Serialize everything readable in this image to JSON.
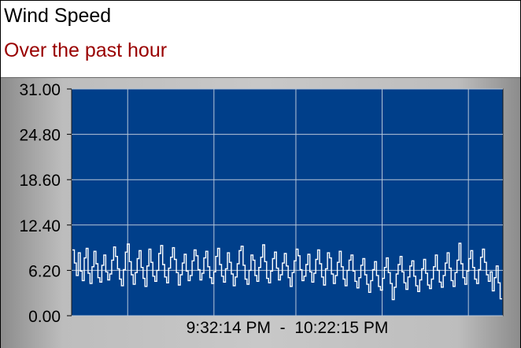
{
  "header": {
    "title": "Wind Speed",
    "subtitle": "Over the past hour"
  },
  "colors": {
    "plot_background": "#003f8a",
    "series": "#ffffff",
    "grid": "#b9c6d8",
    "subtitle": "#990000"
  },
  "chart_data": {
    "type": "line",
    "title": "Wind Speed",
    "subtitle": "Over the past hour",
    "xlabel": "",
    "ylabel": "",
    "x_range_label": "9:32:14 PM  -  10:22:15 PM",
    "x_start": "9:32:14 PM",
    "x_end": "10:22:15 PM",
    "ylim": [
      0,
      31
    ],
    "y_ticks": [
      "31.00",
      "24.80",
      "18.60",
      "12.40",
      "6.20",
      "0.00"
    ],
    "grid": true,
    "legend": "none",
    "series": [
      {
        "values": [
          9.0,
          7.2,
          5.5,
          8.6,
          6.1,
          4.8,
          7.9,
          9.2,
          5.8,
          4.4,
          6.7,
          8.8,
          7.1,
          5.2,
          4.6,
          6.9,
          8.3,
          6.0,
          4.9,
          5.7,
          7.6,
          9.4,
          8.1,
          6.4,
          5.0,
          4.1,
          6.3,
          8.7,
          9.8,
          7.4,
          5.6,
          4.3,
          5.9,
          7.8,
          8.9,
          6.6,
          5.1,
          4.0,
          6.8,
          9.1,
          7.3,
          5.4,
          4.7,
          6.2,
          8.5,
          9.6,
          7.0,
          5.3,
          4.5,
          6.5,
          8.0,
          9.3,
          7.7,
          5.9,
          4.2,
          5.6,
          7.2,
          8.4,
          6.1,
          4.8,
          5.5,
          7.5,
          9.0,
          8.2,
          6.3,
          4.9,
          5.8,
          7.9,
          8.8,
          6.7,
          5.2,
          4.4,
          6.0,
          8.1,
          9.2,
          7.0,
          5.4,
          4.6,
          6.4,
          8.6,
          7.3,
          5.7,
          4.1,
          5.3,
          7.1,
          8.9,
          9.5,
          6.9,
          5.0,
          4.3,
          6.2,
          8.3,
          7.6,
          5.5,
          4.7,
          6.6,
          8.0,
          9.7,
          7.4,
          5.1,
          4.5,
          6.1,
          7.8,
          8.7,
          6.5,
          4.9,
          5.6,
          7.2,
          8.5,
          6.8,
          5.2,
          4.0,
          5.9,
          7.5,
          9.1,
          8.2,
          6.3,
          4.8,
          5.4,
          7.0,
          8.4,
          6.0,
          4.6,
          5.8,
          7.7,
          9.0,
          7.1,
          5.3,
          4.2,
          6.4,
          8.6,
          7.9,
          5.7,
          4.4,
          5.5,
          7.3,
          8.8,
          6.7,
          5.0,
          4.1,
          6.2,
          7.6,
          8.3,
          6.1,
          4.7,
          3.8,
          5.2,
          6.9,
          7.8,
          5.6,
          4.3,
          3.2,
          4.8,
          6.3,
          7.4,
          5.5,
          4.0,
          3.5,
          5.1,
          6.6,
          7.9,
          5.9,
          4.4,
          2.2,
          3.9,
          5.7,
          7.0,
          8.1,
          6.0,
          4.5,
          3.6,
          5.3,
          6.8,
          7.5,
          5.4,
          4.1,
          3.3,
          4.9,
          6.4,
          7.7,
          5.8,
          4.2,
          3.7,
          5.0,
          6.7,
          8.3,
          6.2,
          4.6,
          3.9,
          5.5,
          7.2,
          8.6,
          6.5,
          4.8,
          4.0,
          5.9,
          7.6,
          9.9,
          7.1,
          5.2,
          4.3,
          6.1,
          7.8,
          8.9,
          6.6,
          5.0,
          4.4,
          6.3,
          8.0,
          9.1,
          7.3,
          5.6,
          4.7,
          6.0,
          3.4,
          5.2,
          6.8,
          4.5,
          2.3
        ]
      }
    ]
  }
}
